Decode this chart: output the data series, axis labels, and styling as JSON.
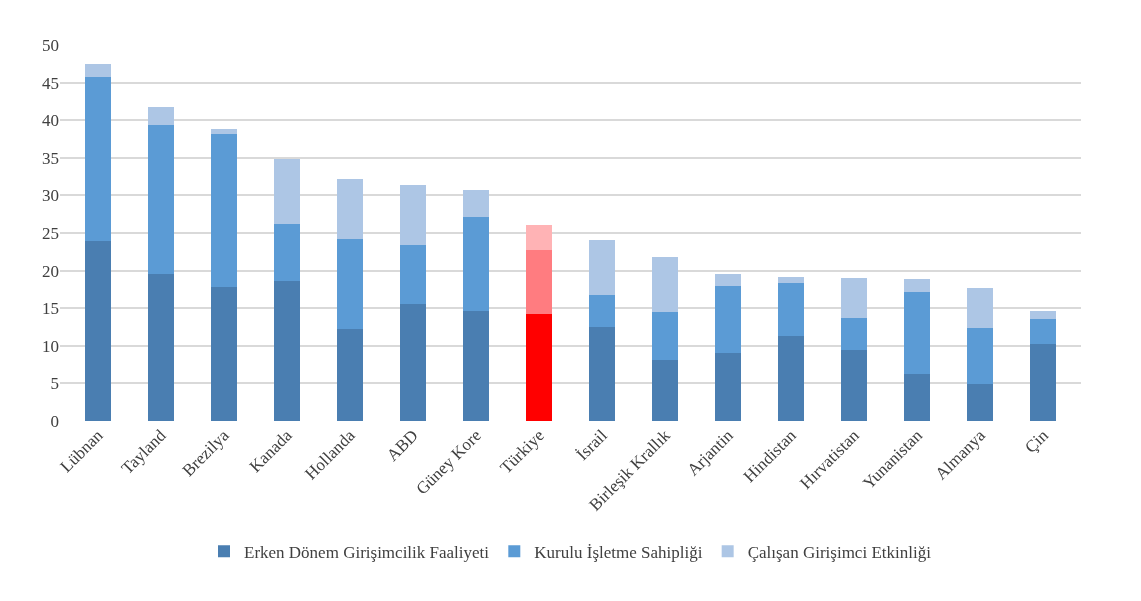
{
  "chart_data": {
    "type": "bar",
    "stacked": true,
    "categories": [
      "Lübnan",
      "Tayland",
      "Brezilya",
      "Kanada",
      "Hollanda",
      "ABD",
      "Güney Kore",
      "Türkiye",
      "İsrail",
      "Birleşik Krallık",
      "Arjantin",
      "Hindistan",
      "Hırvatistan",
      "Yunanistan",
      "Almanya",
      "Çin"
    ],
    "series": [
      {
        "name": "Erken Dönem Girişimcilik Faaliyeti",
        "color": "#4a7eb1",
        "colors": [
          "#4a7eb1",
          "#4a7eb1",
          "#4a7eb1",
          "#4a7eb1",
          "#4a7eb1",
          "#4a7eb1",
          "#4a7eb1",
          "#ff0000",
          "#4a7eb1",
          "#4a7eb1",
          "#4a7eb1",
          "#4a7eb1",
          "#4a7eb1",
          "#4a7eb1",
          "#4a7eb1",
          "#4a7eb1"
        ],
        "values": [
          24,
          19.6,
          17.8,
          18.6,
          12.2,
          15.5,
          14.6,
          14.2,
          12.5,
          8.1,
          9,
          11.3,
          9.5,
          6.3,
          4.9,
          10.3
        ]
      },
      {
        "name": "Kurulu İşletme Sahipliği",
        "color": "#5b9bd5",
        "colors": [
          "#5b9bd5",
          "#5b9bd5",
          "#5b9bd5",
          "#5b9bd5",
          "#5b9bd5",
          "#5b9bd5",
          "#5b9bd5",
          "#ff7c80",
          "#5b9bd5",
          "#5b9bd5",
          "#5b9bd5",
          "#5b9bd5",
          "#5b9bd5",
          "#5b9bd5",
          "#5b9bd5",
          "#5b9bd5"
        ],
        "values": [
          21.8,
          19.7,
          20.4,
          7.6,
          12,
          7.9,
          12.5,
          8.6,
          4.3,
          6.4,
          9,
          7,
          4.2,
          10.8,
          7.5,
          3.2
        ]
      },
      {
        "name": "Çalışan Girişimci Etkinliği",
        "color": "#adc6e5",
        "colors": [
          "#adc6e5",
          "#adc6e5",
          "#adc6e5",
          "#adc6e5",
          "#adc6e5",
          "#adc6e5",
          "#adc6e5",
          "#ffb3b5",
          "#adc6e5",
          "#adc6e5",
          "#adc6e5",
          "#adc6e5",
          "#adc6e5",
          "#adc6e5",
          "#adc6e5",
          "#adc6e5"
        ],
        "values": [
          1.7,
          2.4,
          0.6,
          8.6,
          8,
          8,
          3.6,
          3.2,
          7.3,
          7.3,
          1.6,
          0.9,
          5.3,
          1.8,
          5.3,
          1.1
        ]
      }
    ],
    "ylim": [
      0,
      50
    ],
    "yticks": [
      0,
      5,
      10,
      15,
      20,
      25,
      30,
      35,
      40,
      45,
      50
    ],
    "grid": "y",
    "legend": "bottom"
  }
}
